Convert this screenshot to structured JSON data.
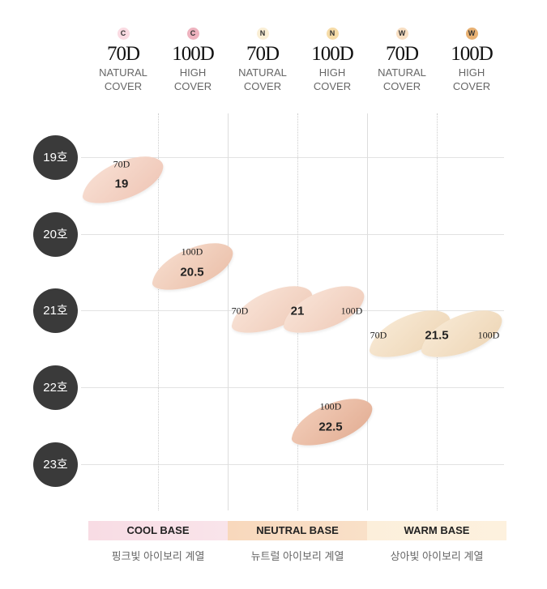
{
  "columns": [
    {
      "badge": "C",
      "badge_color": "#fadbe2",
      "shade": "70D",
      "cover": [
        "NATURAL",
        "COVER"
      ]
    },
    {
      "badge": "C",
      "badge_color": "#eeb3bf",
      "shade": "100D",
      "cover": [
        "HIGH",
        "COVER"
      ]
    },
    {
      "badge": "N",
      "badge_color": "#faefd6",
      "shade": "70D",
      "cover": [
        "NATURAL",
        "COVER"
      ]
    },
    {
      "badge": "N",
      "badge_color": "#f6dca8",
      "shade": "100D",
      "cover": [
        "HIGH",
        "COVER"
      ]
    },
    {
      "badge": "W",
      "badge_color": "#f8dfc3",
      "shade": "70D",
      "cover": [
        "NATURAL",
        "COVER"
      ]
    },
    {
      "badge": "W",
      "badge_color": "#e8b173",
      "shade": "100D",
      "cover": [
        "HIGH",
        "COVER"
      ]
    }
  ],
  "rows": [
    "19호",
    "20호",
    "21호",
    "22호",
    "23호"
  ],
  "swatches": [
    {
      "label": "70D",
      "value": "19",
      "color": "#f3d2c4"
    },
    {
      "label": "100D",
      "value": "20.5",
      "color": "#efc9b5"
    },
    {
      "label_left": "70D",
      "value": "21",
      "label_right": "100D",
      "color": "#f3d6c6"
    },
    {
      "label_left": "70D",
      "value": "21.5",
      "label_right": "100D",
      "color": "#f1dfc3"
    },
    {
      "label": "100D",
      "value": "22.5",
      "color": "#e9b9a1"
    }
  ],
  "bases": [
    {
      "title": "COOL BASE",
      "subtitle": "핑크빛 아이보리 계열",
      "color": "#f8dde4"
    },
    {
      "title": "NEUTRAL BASE",
      "subtitle": "뉴트럴 아이보리 계열",
      "color": "#f8dcc2"
    },
    {
      "title": "WARM BASE",
      "subtitle": "상아빛 아이보리 계열",
      "color": "#fcefd9"
    }
  ]
}
